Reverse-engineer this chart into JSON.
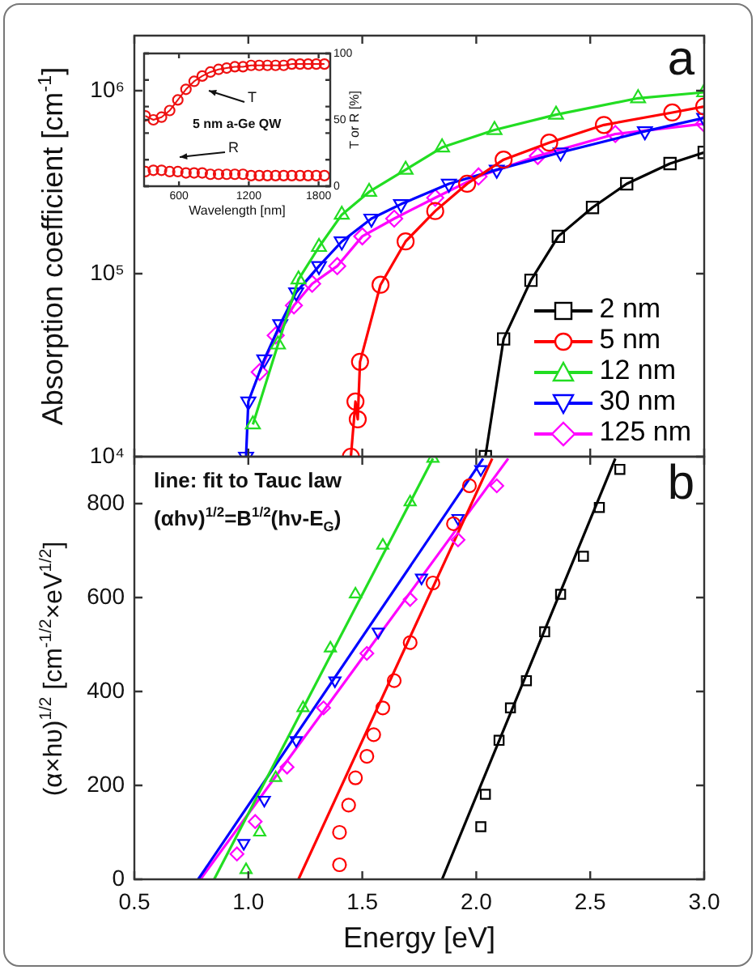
{
  "chart_data": [
    {
      "type": "line",
      "ylabel": "Absorption coefficient [cm$^{-1}$]",
      "annotations": [
        "a"
      ],
      "log": "y",
      "xlim": [
        0.5,
        3
      ],
      "xticks": [
        0.5,
        1,
        1.5,
        2,
        2.5,
        3
      ],
      "ylim": [
        10000,
        2000000
      ],
      "yticks": [
        {
          "value": 10000,
          "label": "10⁴"
        },
        {
          "value": 100000,
          "label": "10⁵"
        },
        {
          "value": 1000000,
          "label": "10⁶"
        }
      ],
      "tick_labels": "y",
      "grid": false,
      "legend": "bottom right",
      "series": [
        {
          "name": "2 nm",
          "color": "#000000",
          "marker": "square",
          "x": [
            2.04,
            2.12,
            2.24,
            2.36,
            2.51,
            2.66,
            2.85,
            3.0
          ],
          "values": [
            10000,
            44000,
            92000,
            160000,
            230000,
            310000,
            400000,
            460000
          ]
        },
        {
          "name": "5 nm",
          "color": "#ff0000",
          "marker": "circle",
          "x": [
            1.45,
            1.47,
            1.48,
            1.49,
            1.58,
            1.69,
            1.82,
            1.96,
            2.12,
            2.32,
            2.56,
            2.86,
            3.0
          ],
          "values": [
            10000,
            20000,
            16000,
            33000,
            87000,
            150000,
            220000,
            310000,
            420000,
            520000,
            650000,
            760000,
            820000
          ]
        },
        {
          "name": "12 nm",
          "color": "#22dd22",
          "marker": "triangle",
          "x": [
            1.02,
            1.13,
            1.22,
            1.31,
            1.41,
            1.53,
            1.69,
            1.85,
            2.08,
            2.35,
            2.71,
            3.0
          ],
          "values": [
            15000,
            41000,
            93000,
            140000,
            210000,
            280000,
            370000,
            490000,
            610000,
            740000,
            910000,
            980000
          ]
        },
        {
          "name": "30 nm",
          "color": "#0000ff",
          "marker": "triangle-down",
          "x": [
            0.99,
            1.0,
            1.07,
            1.14,
            1.21,
            1.31,
            1.41,
            1.54,
            1.67,
            1.88,
            2.09,
            2.37,
            2.74,
            3.0
          ],
          "values": [
            10000,
            20000,
            34000,
            53000,
            79000,
            110000,
            150000,
            200000,
            240000,
            310000,
            370000,
            460000,
            600000,
            710000
          ]
        },
        {
          "name": "125 nm",
          "color": "#ff00ff",
          "marker": "diamond",
          "x": [
            1.05,
            1.12,
            1.2,
            1.28,
            1.39,
            1.5,
            1.64,
            1.82,
            2.01,
            2.27,
            2.61,
            3.0
          ],
          "values": [
            29000,
            46000,
            67000,
            88000,
            110000,
            160000,
            200000,
            260000,
            340000,
            440000,
            580000,
            660000
          ]
        }
      ]
    },
    {
      "type": "line",
      "xlabel": "Wavelength [nm]",
      "y2label": "T or R [%]",
      "annotations": [
        "T",
        "R",
        "5 nm a-Ge QW"
      ],
      "xlim": [
        300,
        1900
      ],
      "xticks": [
        600,
        1200,
        1800
      ],
      "y2lim": [
        0,
        100
      ],
      "y2ticks": [
        0,
        50,
        100
      ],
      "grid": false,
      "series": [
        {
          "color": "#ee1111",
          "marker": "circle",
          "axis": "y2",
          "x": [
            310,
            380,
            450,
            520,
            590,
            660,
            730,
            800,
            870,
            940,
            1010,
            1080,
            1150,
            1220,
            1290,
            1360,
            1430,
            1500,
            1570,
            1640,
            1710,
            1780,
            1850
          ],
          "values": [
            53,
            50,
            52,
            57,
            65,
            73,
            79,
            83,
            86,
            88,
            89,
            90,
            90,
            91,
            91,
            91,
            91,
            91,
            92,
            92,
            92,
            92,
            92
          ]
        },
        {
          "type": "scatter",
          "color": "#ee1111",
          "marker": "circle",
          "axis": "y2",
          "x": [
            310,
            380,
            450,
            520,
            590,
            660,
            730,
            800,
            870,
            940,
            1010,
            1080,
            1150,
            1220,
            1290,
            1360,
            1430,
            1500,
            1570,
            1640,
            1710,
            1780,
            1850
          ],
          "values": [
            11,
            12,
            12,
            11,
            11,
            10,
            10,
            10,
            9,
            9,
            9,
            9,
            9,
            8,
            8,
            8,
            8,
            8,
            8,
            8,
            8,
            8,
            8
          ]
        }
      ]
    },
    {
      "type": "scatter",
      "xlabel": "Energy [eV]",
      "ylabel": "(α×hυ)$^{1/2}$ [cm$^{-1/2}$×eV$^{1/2}$]",
      "annotations": [
        "b",
        "line: fit to Tauc law",
        "(αhν)$^{1/2}$=B$^{1/2}$(hν-E$_{G}$)"
      ],
      "xlim": [
        0.5,
        3
      ],
      "xticks": [
        0.5,
        {
          "value": 1,
          "label": "1.0"
        },
        1.5,
        {
          "value": 2,
          "label": "2.0"
        },
        2.5,
        {
          "value": 3,
          "label": "3.0"
        }
      ],
      "ylim": [
        0,
        900
      ],
      "yticks": [
        0,
        200,
        400,
        600,
        800
      ],
      "grid": false,
      "series": [
        {
          "color": "#000000",
          "marker": "square",
          "x": [
            2.02,
            2.04,
            2.1,
            2.15,
            2.22,
            2.3,
            2.37,
            2.47,
            2.54,
            2.63
          ],
          "values": [
            112,
            181,
            296,
            365,
            423,
            527,
            607,
            688,
            792,
            873
          ]
        },
        {
          "color": "#ff0000",
          "marker": "circle",
          "x": [
            1.4,
            1.4,
            1.44,
            1.47,
            1.52,
            1.55,
            1.59,
            1.64,
            1.71,
            1.81,
            1.9,
            1.97
          ],
          "values": [
            31,
            100,
            158,
            216,
            262,
            308,
            365,
            423,
            504,
            631,
            757,
            838
          ]
        },
        {
          "color": "#22dd22",
          "marker": "triangle",
          "x": [
            0.99,
            1.05,
            1.12,
            1.24,
            1.36,
            1.47,
            1.59,
            1.71,
            1.81
          ],
          "values": [
            20,
            100,
            216,
            365,
            492,
            607,
            711,
            803,
            896
          ]
        },
        {
          "color": "#0000ff",
          "marker": "triangle-down",
          "x": [
            0.98,
            1.07,
            1.21,
            1.38,
            1.57,
            1.76,
            1.92,
            2.02
          ],
          "values": [
            77,
            169,
            296,
            423,
            527,
            642,
            769,
            873
          ]
        },
        {
          "color": "#ff00ff",
          "marker": "diamond",
          "x": [
            0.95,
            1.03,
            1.17,
            1.33,
            1.52,
            1.71,
            1.92,
            2.09
          ],
          "values": [
            54,
            123,
            239,
            365,
            481,
            596,
            723,
            838
          ]
        },
        {
          "type": "line",
          "color": "#000000",
          "marker": "none",
          "x": [
            1.85,
            2.61
          ],
          "values": [
            0,
            896
          ]
        },
        {
          "type": "line",
          "color": "#ff0000",
          "marker": "none",
          "x": [
            1.22,
            2.07
          ],
          "values": [
            0,
            896
          ]
        },
        {
          "type": "line",
          "color": "#22dd22",
          "marker": "none",
          "x": [
            0.85,
            1.81
          ],
          "values": [
            0,
            896
          ]
        },
        {
          "type": "line",
          "color": "#0000ff",
          "marker": "none",
          "x": [
            0.78,
            2.03
          ],
          "values": [
            0,
            896
          ]
        },
        {
          "type": "line",
          "color": "#ff00ff",
          "marker": "none",
          "x": [
            0.79,
            2.14
          ],
          "values": [
            0,
            896
          ]
        }
      ]
    }
  ]
}
